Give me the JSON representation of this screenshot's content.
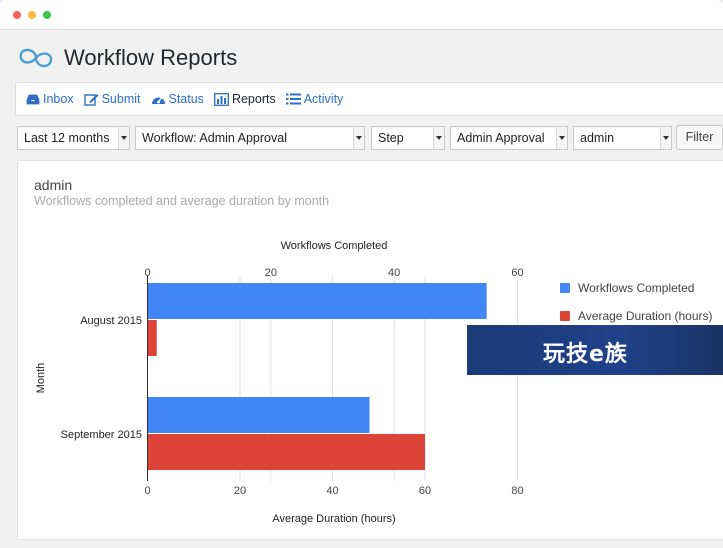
{
  "header": {
    "title": "Workflow Reports"
  },
  "nav": {
    "items": [
      {
        "label": "Inbox",
        "icon": "inbox-icon"
      },
      {
        "label": "Submit",
        "icon": "edit-icon"
      },
      {
        "label": "Status",
        "icon": "dashboard-icon"
      },
      {
        "label": "Reports",
        "icon": "bar-chart-icon"
      },
      {
        "label": "Activity",
        "icon": "list-icon"
      }
    ]
  },
  "filters": {
    "period": "Last 12 months",
    "workflow": "Workflow: Admin Approval",
    "step_type": "Step",
    "step": "Admin Approval",
    "user": "admin",
    "filter_label": "Filter"
  },
  "report": {
    "title": "admin",
    "subtitle": "Workflows completed and average duration by month"
  },
  "chart_data": {
    "type": "bar",
    "orientation": "horizontal",
    "categories": [
      "August 2015",
      "September 2015"
    ],
    "ylabel": "Month",
    "series": [
      {
        "name": "Workflows Completed",
        "color": "#4285f4",
        "values": [
          55,
          36
        ],
        "axis": "top",
        "axis_title": "Workflows Completed",
        "xlim": [
          0,
          60
        ],
        "ticks": [
          0,
          20,
          40,
          60
        ]
      },
      {
        "name": "Average Duration (hours)",
        "color": "#db4437",
        "values": [
          2,
          60
        ],
        "axis": "bottom",
        "axis_title": "Average Duration (hours)",
        "xlim": [
          0,
          80
        ],
        "ticks": [
          0,
          20,
          40,
          60,
          80
        ]
      }
    ],
    "legend_position": "right",
    "grid": true
  },
  "watermark": {
    "text": "玩技e族"
  }
}
